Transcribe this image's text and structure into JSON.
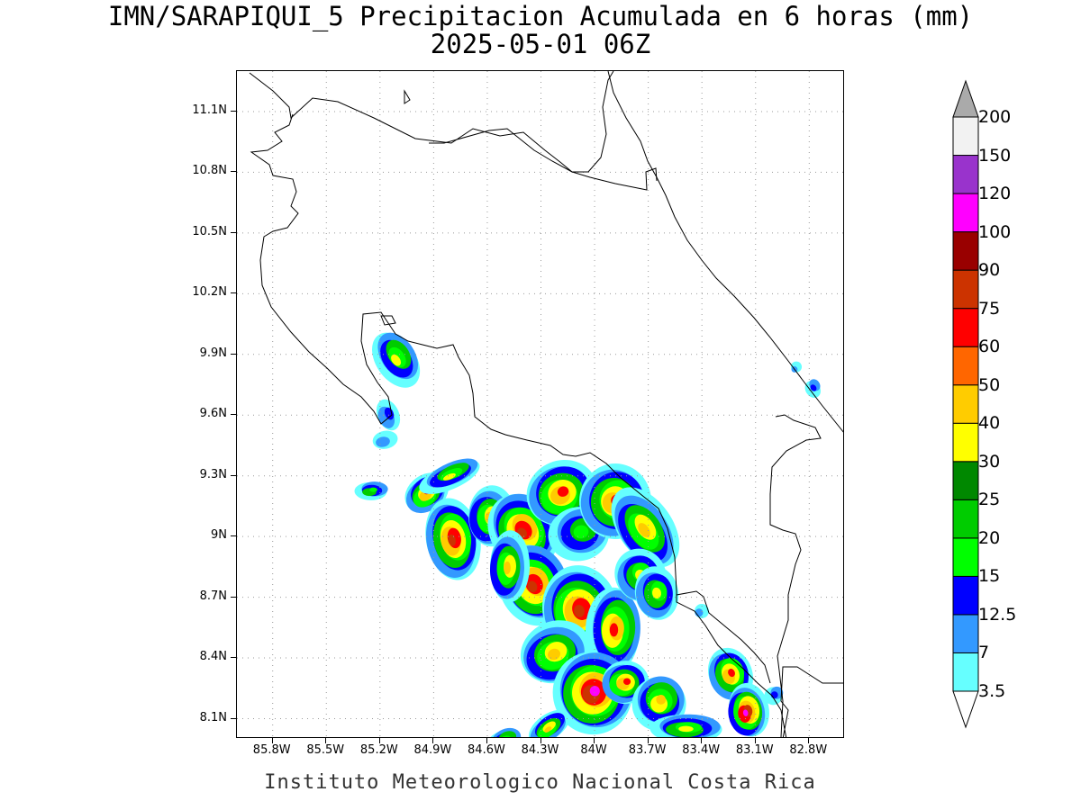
{
  "title": {
    "line1": "IMN/SARAPIQUI_5 Precipitacion Acumulada en 6 horas (mm)",
    "line2": "2025-05-01 06Z"
  },
  "map": {
    "lon_range": [
      -86.0,
      -82.6
    ],
    "lat_range": [
      8.0,
      11.3
    ],
    "lat_ticks": [
      {
        "value": 11.1,
        "label": "11.1N"
      },
      {
        "value": 10.8,
        "label": "10.8N"
      },
      {
        "value": 10.5,
        "label": "10.5N"
      },
      {
        "value": 10.2,
        "label": "10.2N"
      },
      {
        "value": 9.9,
        "label": "9.9N"
      },
      {
        "value": 9.6,
        "label": "9.6N"
      },
      {
        "value": 9.3,
        "label": "9.3N"
      },
      {
        "value": 9.0,
        "label": "9N"
      },
      {
        "value": 8.7,
        "label": "8.7N"
      },
      {
        "value": 8.4,
        "label": "8.4N"
      },
      {
        "value": 8.1,
        "label": "8.1N"
      }
    ],
    "lon_ticks": [
      {
        "value": -85.8,
        "label": "85.8W"
      },
      {
        "value": -85.5,
        "label": "85.5W"
      },
      {
        "value": -85.2,
        "label": "85.2W"
      },
      {
        "value": -84.9,
        "label": "84.9W"
      },
      {
        "value": -84.6,
        "label": "84.6W"
      },
      {
        "value": -84.3,
        "label": "84.3W"
      },
      {
        "value": -84.0,
        "label": "84W"
      },
      {
        "value": -83.7,
        "label": "83.7W"
      },
      {
        "value": -83.4,
        "label": "83.4W"
      },
      {
        "value": -83.1,
        "label": "83.1W"
      },
      {
        "value": -82.8,
        "label": "82.8W"
      }
    ],
    "grid": "dotted"
  },
  "colorbar": {
    "levels": [
      "3.5",
      "7",
      "12.5",
      "15",
      "20",
      "25",
      "30",
      "40",
      "50",
      "60",
      "75",
      "90",
      "100",
      "120",
      "150",
      "200"
    ],
    "colors": [
      "#ffffff",
      "#66ffff",
      "#3399ff",
      "#0000ff",
      "#00ff00",
      "#00cc00",
      "#008800",
      "#ffff00",
      "#ffcc00",
      "#ff6600",
      "#ff0000",
      "#cc3300",
      "#990000",
      "#ff00ff",
      "#9933cc",
      "#f2f2f2",
      "#aaaaaa"
    ]
  },
  "credit": "Instituto Meteorologico Nacional Costa Rica"
}
